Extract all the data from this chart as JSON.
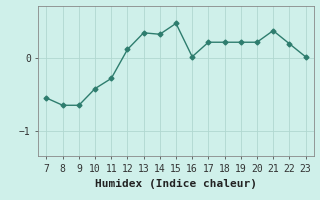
{
  "x": [
    7,
    8,
    9,
    10,
    11,
    12,
    13,
    14,
    15,
    16,
    17,
    18,
    19,
    20,
    21,
    22,
    23
  ],
  "y": [
    -0.55,
    -0.65,
    -0.65,
    -0.42,
    -0.28,
    0.12,
    0.35,
    0.33,
    0.48,
    0.02,
    0.22,
    0.22,
    0.22,
    0.22,
    0.38,
    0.2,
    0.02
  ],
  "line_color": "#2e7d6e",
  "marker": "D",
  "marker_size": 2.5,
  "linewidth": 1.0,
  "xlabel": "Humidex (Indice chaleur)",
  "xlim": [
    6.5,
    23.5
  ],
  "ylim": [
    -1.35,
    0.72
  ],
  "yticks": [
    -1,
    0
  ],
  "xticks": [
    7,
    8,
    9,
    10,
    11,
    12,
    13,
    14,
    15,
    16,
    17,
    18,
    19,
    20,
    21,
    22,
    23
  ],
  "bg_color": "#cff0ea",
  "grid_color": "#b0d8d0",
  "xlabel_fontsize": 8,
  "tick_fontsize": 7
}
